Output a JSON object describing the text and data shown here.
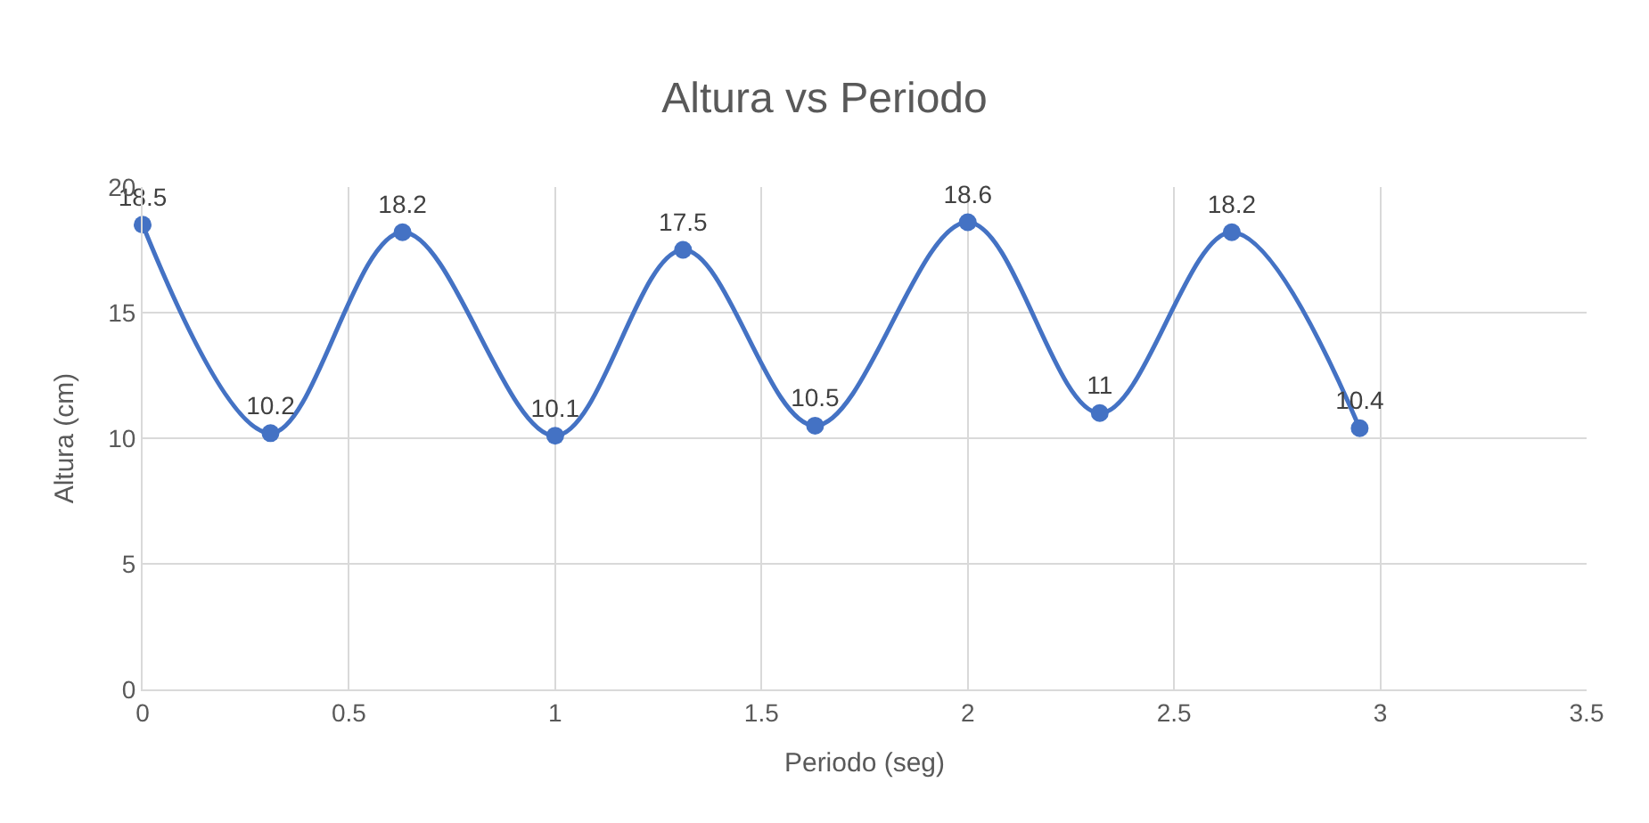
{
  "chart_data": {
    "type": "line",
    "title": "Altura vs Periodo",
    "xlabel": "Periodo (seg)",
    "ylabel": "Altura (cm)",
    "x": [
      0,
      0.31,
      0.63,
      1.0,
      1.31,
      1.63,
      2.0,
      2.32,
      2.64,
      2.95
    ],
    "series": [
      {
        "color": "#4472c4",
        "values": [
          18.5,
          10.2,
          18.2,
          10.1,
          17.5,
          10.5,
          18.6,
          11,
          18.2,
          10.4
        ]
      }
    ],
    "xlim": [
      0,
      3.5
    ],
    "xticks": [
      0,
      0.5,
      1,
      1.5,
      2,
      2.5,
      3,
      3.5
    ],
    "ylim": [
      0,
      20
    ],
    "yticks": [
      0,
      5,
      10,
      15,
      20
    ],
    "grid": true,
    "marker": "circle",
    "line_style": "solid",
    "data_labels": true,
    "legend": false
  }
}
